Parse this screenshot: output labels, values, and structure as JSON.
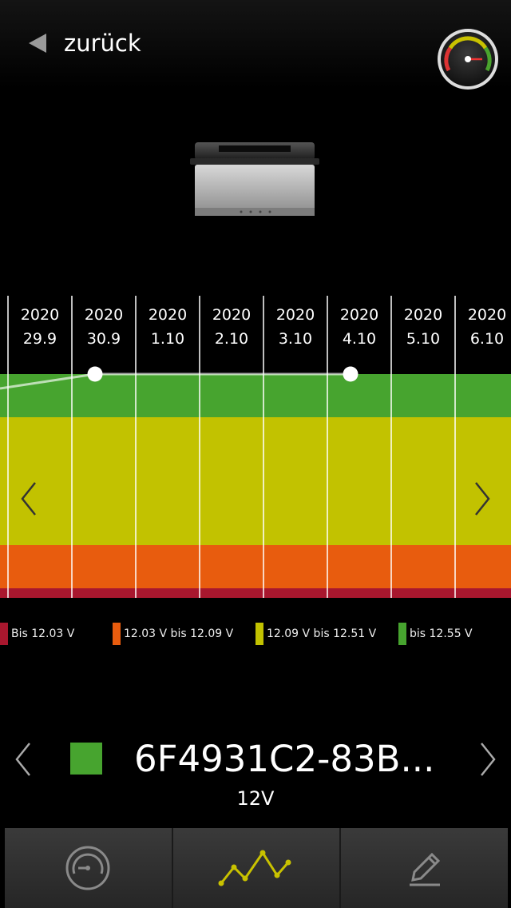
{
  "header": {
    "back_label": "zurück",
    "back_icon": "back-triangle-icon",
    "gauge_icon": "gauge-icon"
  },
  "device_image": "car-battery-image",
  "chart_data": {
    "type": "line",
    "x": [
      "2020 29.9",
      "2020 30.9",
      "2020 1.10",
      "2020 2.10",
      "2020 3.10",
      "2020 4.10",
      "2020 5.10",
      "2020 6.10"
    ],
    "columns": [
      {
        "year": "2020",
        "date": "29.9"
      },
      {
        "year": "2020",
        "date": "30.9"
      },
      {
        "year": "2020",
        "date": "1.10"
      },
      {
        "year": "2020",
        "date": "2.10"
      },
      {
        "year": "2020",
        "date": "3.10"
      },
      {
        "year": "2020",
        "date": "4.10"
      },
      {
        "year": "2020",
        "date": "5.10"
      },
      {
        "year": "2020",
        "date": "6.10"
      }
    ],
    "points": [
      {
        "x": "2020 30.9",
        "y": 12.55
      },
      {
        "x": "2020 4.10",
        "y": 12.55
      }
    ],
    "bands": [
      {
        "label": "Bis 12.03 V",
        "color": "#a8172e"
      },
      {
        "label": "12.03 V bis 12.09 V",
        "color": "#e85c0e"
      },
      {
        "label": "12.09 V bis 12.51 V",
        "color": "#c2c200"
      },
      {
        "label": "bis 12.55 V",
        "color": "#47a42f"
      }
    ],
    "ylim": [
      12.0,
      12.6
    ],
    "grid": true
  },
  "legend": [
    {
      "label": "Bis 12.03 V",
      "color": "#a8172e"
    },
    {
      "label": "12.03 V bis 12.09 V",
      "color": "#e85c0e"
    },
    {
      "label": "12.09 V bis 12.51 V",
      "color": "#c2c200"
    },
    {
      "label": "bis 12.55 V",
      "color": "#47a42f"
    }
  ],
  "device": {
    "name": "6F4931C2-83B...",
    "voltage": "12V",
    "status_color": "#47a42f"
  },
  "tabs": [
    {
      "icon": "gauge-icon",
      "active": false
    },
    {
      "icon": "line-chart-icon",
      "active": true
    },
    {
      "icon": "pencil-icon",
      "active": false
    }
  ]
}
